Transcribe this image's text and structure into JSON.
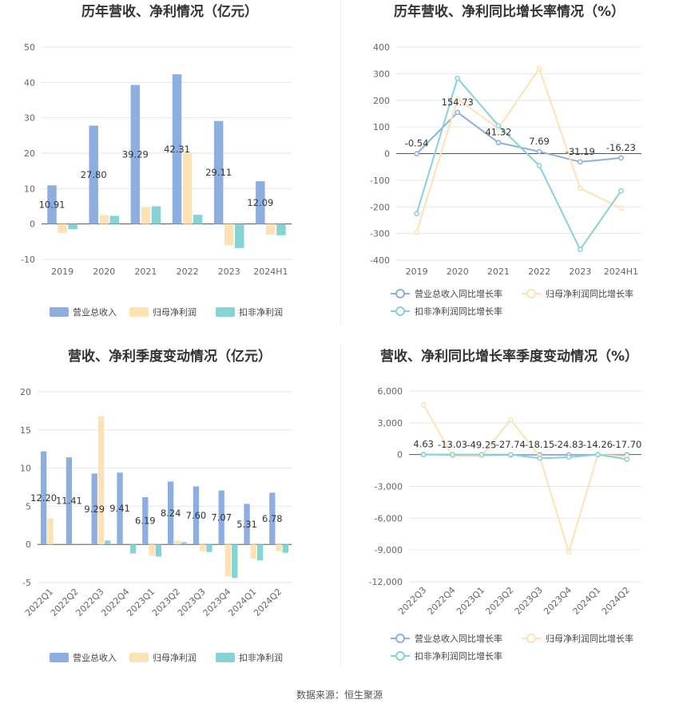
{
  "source": "数据来源：恒生聚源",
  "colors": {
    "revenue": "#8eaedf",
    "netprofit": "#fee2b4",
    "deducted": "#86d3d5"
  },
  "chart_data": [
    {
      "type": "bar",
      "title": "历年营收、净利情况（亿元）",
      "categories": [
        "2019",
        "2020",
        "2021",
        "2022",
        "2023",
        "2024H1"
      ],
      "ylim": [
        -10,
        50
      ],
      "yticks": [
        -10,
        0,
        10,
        20,
        30,
        40,
        50
      ],
      "legend_position": "bottom",
      "series": [
        {
          "name": "营业总收入",
          "color": "#8eaedf",
          "values": [
            10.91,
            27.8,
            39.29,
            42.31,
            29.11,
            12.09
          ]
        },
        {
          "name": "归母净利润",
          "color": "#fee2b4",
          "values": [
            -2.5,
            2.5,
            4.8,
            20.2,
            -6.0,
            -3.0
          ]
        },
        {
          "name": "扣非净利润",
          "color": "#86d3d5",
          "values": [
            -1.5,
            2.3,
            5.0,
            2.6,
            -6.8,
            -3.2
          ]
        }
      ],
      "labels": [
        "10.91",
        "27.80",
        "39.29",
        "42.31",
        "29.11",
        "12.09"
      ]
    },
    {
      "type": "line",
      "title": "历年营收、净利同比增长率情况（%）",
      "categories": [
        "2019",
        "2020",
        "2021",
        "2022",
        "2023",
        "2024H1"
      ],
      "ylim": [
        -400,
        400
      ],
      "yticks": [
        -400,
        -300,
        -200,
        -100,
        0,
        100,
        200,
        300,
        400
      ],
      "legend_position": "bottom",
      "series": [
        {
          "name": "营业总收入同比增长率",
          "color": "#8eaedf",
          "values": [
            -0.54,
            154.73,
            41.32,
            7.69,
            -31.19,
            -16.23
          ]
        },
        {
          "name": "归母净利润同比增长率",
          "color": "#fee2b4",
          "values": [
            -295,
            205,
            95,
            320,
            -130,
            -205
          ]
        },
        {
          "name": "扣非净利润同比增长率",
          "color": "#86d3d5",
          "values": [
            -225,
            283,
            105,
            -45,
            -360,
            -140
          ]
        }
      ],
      "labels": [
        "-0.54",
        "154.73",
        "41.32",
        "7.69",
        "-31.19",
        "-16.23"
      ]
    },
    {
      "type": "bar",
      "title": "营收、净利季度变动情况（亿元）",
      "categories": [
        "2022Q1",
        "2022Q2",
        "2022Q3",
        "2022Q4",
        "2023Q1",
        "2023Q2",
        "2023Q3",
        "2023Q4",
        "2024Q1",
        "2024Q2"
      ],
      "ylim": [
        -5,
        20
      ],
      "yticks": [
        -5,
        0,
        5,
        10,
        15,
        20
      ],
      "legend_position": "bottom",
      "series": [
        {
          "name": "营业总收入",
          "color": "#8eaedf",
          "values": [
            12.2,
            11.41,
            9.29,
            9.41,
            6.19,
            8.24,
            7.6,
            7.07,
            5.31,
            6.78
          ]
        },
        {
          "name": "归母净利润",
          "color": "#fee2b4",
          "values": [
            3.4,
            0,
            16.8,
            0,
            -1.5,
            0.5,
            -0.9,
            -4.2,
            -1.9,
            -0.9
          ]
        },
        {
          "name": "扣非净利润",
          "color": "#86d3d5",
          "values": [
            0,
            0,
            0.5,
            -1.2,
            -1.6,
            0.3,
            -1.0,
            -4.4,
            -2.1,
            -1.1
          ]
        }
      ],
      "labels": [
        "12.20",
        "11.41",
        "9.29",
        "9.41",
        "6.19",
        "8.24",
        "7.60",
        "7.07",
        "5.31",
        "6.78"
      ]
    },
    {
      "type": "line",
      "title": "营收、净利同比增长率季度变动情况（%）",
      "categories": [
        "2022Q3",
        "2022Q4",
        "2023Q1",
        "2023Q2",
        "2023Q3",
        "2023Q4",
        "2024Q1",
        "2024Q2"
      ],
      "ylim": [
        -12000,
        6000
      ],
      "yticks": [
        -12000,
        -9000,
        -6000,
        -3000,
        0,
        3000,
        6000
      ],
      "yticklabels": [
        "-12,000",
        "-9,000",
        "-6,000",
        "-3,000",
        "0",
        "3,000",
        "6,000"
      ],
      "legend_position": "bottom",
      "series": [
        {
          "name": "营业总收入同比增长率",
          "color": "#8eaedf",
          "values": [
            4.63,
            -13.03,
            -49.25,
            -27.74,
            -18.15,
            -24.83,
            -14.26,
            -17.7
          ]
        },
        {
          "name": "归母净利润同比增长率",
          "color": "#fee2b4",
          "values": [
            4700,
            -150,
            -150,
            3300,
            -200,
            -9200,
            0,
            -200
          ]
        },
        {
          "name": "扣非净利润同比增长率",
          "color": "#86d3d5",
          "values": [
            0,
            0,
            0,
            0,
            -350,
            -250,
            0,
            -450
          ]
        }
      ],
      "labels": [
        "4.63",
        "-13.03",
        "-49.25",
        "-27.74",
        "-18.15",
        "-24.83",
        "-14.26",
        "-17.70"
      ]
    }
  ]
}
